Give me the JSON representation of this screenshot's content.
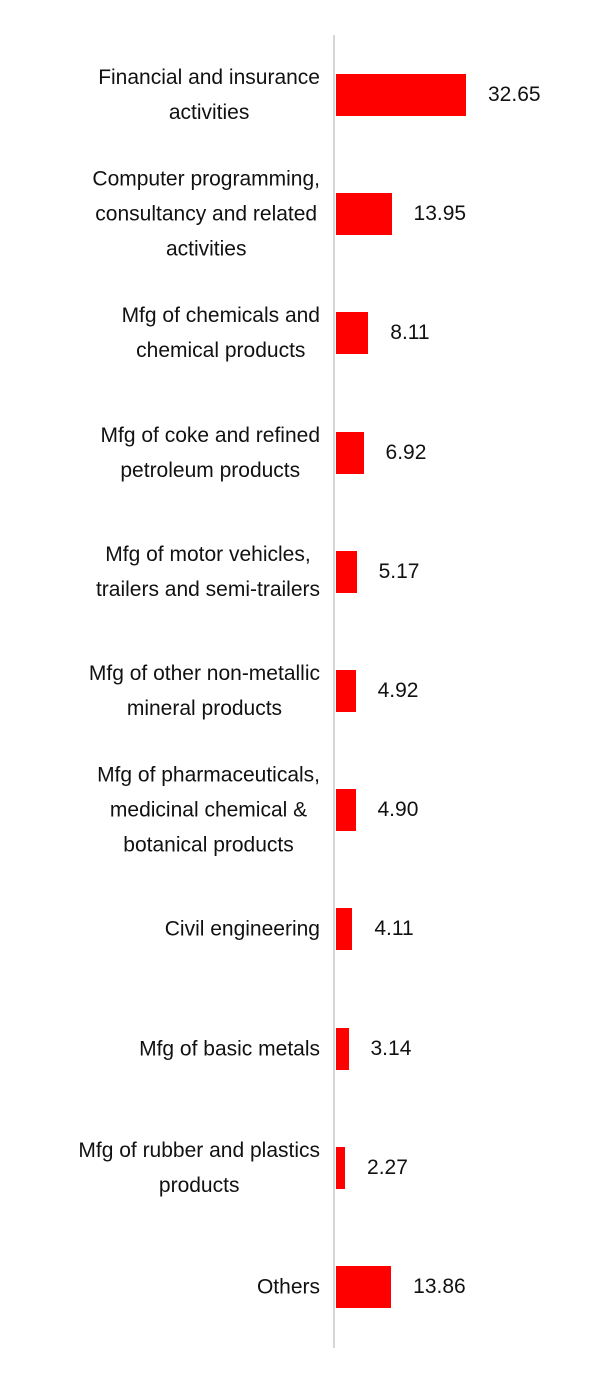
{
  "chart_data": {
    "type": "barh",
    "categories": [
      "Financial and insurance\nactivities",
      "Computer programming,\nconsultancy and related\nactivities",
      "Mfg of chemicals and\nchemical products",
      "Mfg of coke and refined\npetroleum products",
      "Mfg of motor vehicles,\ntrailers and semi-trailers",
      "Mfg of other non-metallic\nmineral products",
      "Mfg of pharmaceuticals,\nmedicinal chemical &\nbotanical products",
      "Civil engineering",
      "Mfg of basic metals",
      "Mfg of rubber and plastics\nproducts",
      "Others"
    ],
    "values": [
      32.65,
      13.95,
      8.11,
      6.92,
      5.17,
      4.92,
      4.9,
      4.11,
      3.14,
      2.27,
      13.86
    ],
    "value_labels": [
      "32.65",
      "13.95",
      "8.11",
      "6.92",
      "5.17",
      "4.92",
      "4.90",
      "4.11",
      "3.14",
      "2.27",
      "13.86"
    ],
    "color": "#ff0000"
  }
}
